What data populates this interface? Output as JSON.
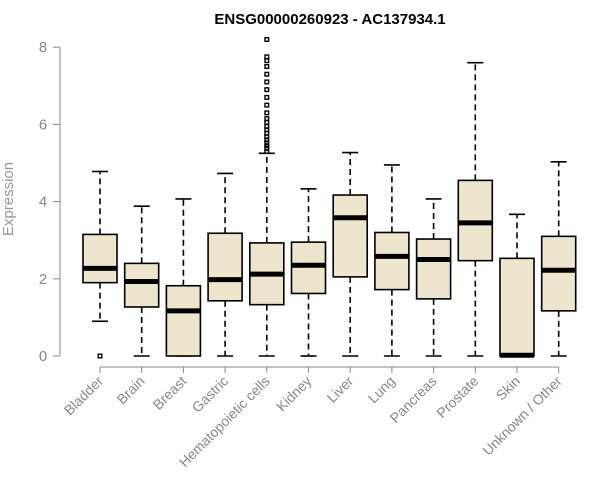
{
  "chart_data": {
    "type": "boxplot",
    "title": "ENSG00000260923 - AC137934.1",
    "ylabel": "Expression",
    "xlabel": "",
    "ylim": [
      0,
      8.2
    ],
    "yticks": [
      0,
      2,
      4,
      6,
      8
    ],
    "grid": false,
    "colors": {
      "box_fill": "#ede6cc",
      "box_stroke": "#000000",
      "axis": "#888888"
    },
    "categories": [
      "Bladder",
      "Brain",
      "Breast",
      "Gastric",
      "Hematopoietic cells",
      "Kidney",
      "Liver",
      "Lung",
      "Pancreas",
      "Prostate",
      "Skin",
      "Unknown / Other"
    ],
    "boxes": [
      {
        "min": 0.9,
        "q1": 1.9,
        "median": 2.27,
        "q3": 3.15,
        "max": 4.78,
        "outliers": [
          0.0
        ]
      },
      {
        "min": 0.0,
        "q1": 1.27,
        "median": 1.93,
        "q3": 2.4,
        "max": 3.88,
        "outliers": []
      },
      {
        "min": 0.0,
        "q1": 0.0,
        "median": 1.17,
        "q3": 1.82,
        "max": 4.07,
        "outliers": []
      },
      {
        "min": 0.0,
        "q1": 1.43,
        "median": 1.98,
        "q3": 3.18,
        "max": 4.73,
        "outliers": []
      },
      {
        "min": 0.0,
        "q1": 1.33,
        "median": 2.12,
        "q3": 2.93,
        "max": 5.25,
        "outliers": [
          5.3,
          5.38,
          5.45,
          5.52,
          5.6,
          5.68,
          5.77,
          5.86,
          5.95,
          6.05,
          6.15,
          6.3,
          6.5,
          6.7,
          6.9,
          7.1,
          7.3,
          7.5,
          7.65,
          7.75,
          8.2
        ]
      },
      {
        "min": 0.0,
        "q1": 1.62,
        "median": 2.35,
        "q3": 2.95,
        "max": 4.33,
        "outliers": []
      },
      {
        "min": 0.0,
        "q1": 2.05,
        "median": 3.58,
        "q3": 4.17,
        "max": 5.27,
        "outliers": []
      },
      {
        "min": 0.0,
        "q1": 1.72,
        "median": 2.58,
        "q3": 3.2,
        "max": 4.95,
        "outliers": []
      },
      {
        "min": 0.0,
        "q1": 1.48,
        "median": 2.5,
        "q3": 3.03,
        "max": 4.07,
        "outliers": []
      },
      {
        "min": 0.0,
        "q1": 2.47,
        "median": 3.45,
        "q3": 4.55,
        "max": 7.6,
        "outliers": []
      },
      {
        "min": 0.0,
        "q1": 0.0,
        "median": 0.02,
        "q3": 2.53,
        "max": 3.67,
        "outliers": []
      },
      {
        "min": 0.0,
        "q1": 1.17,
        "median": 2.22,
        "q3": 3.1,
        "max": 5.03,
        "outliers": []
      }
    ]
  }
}
